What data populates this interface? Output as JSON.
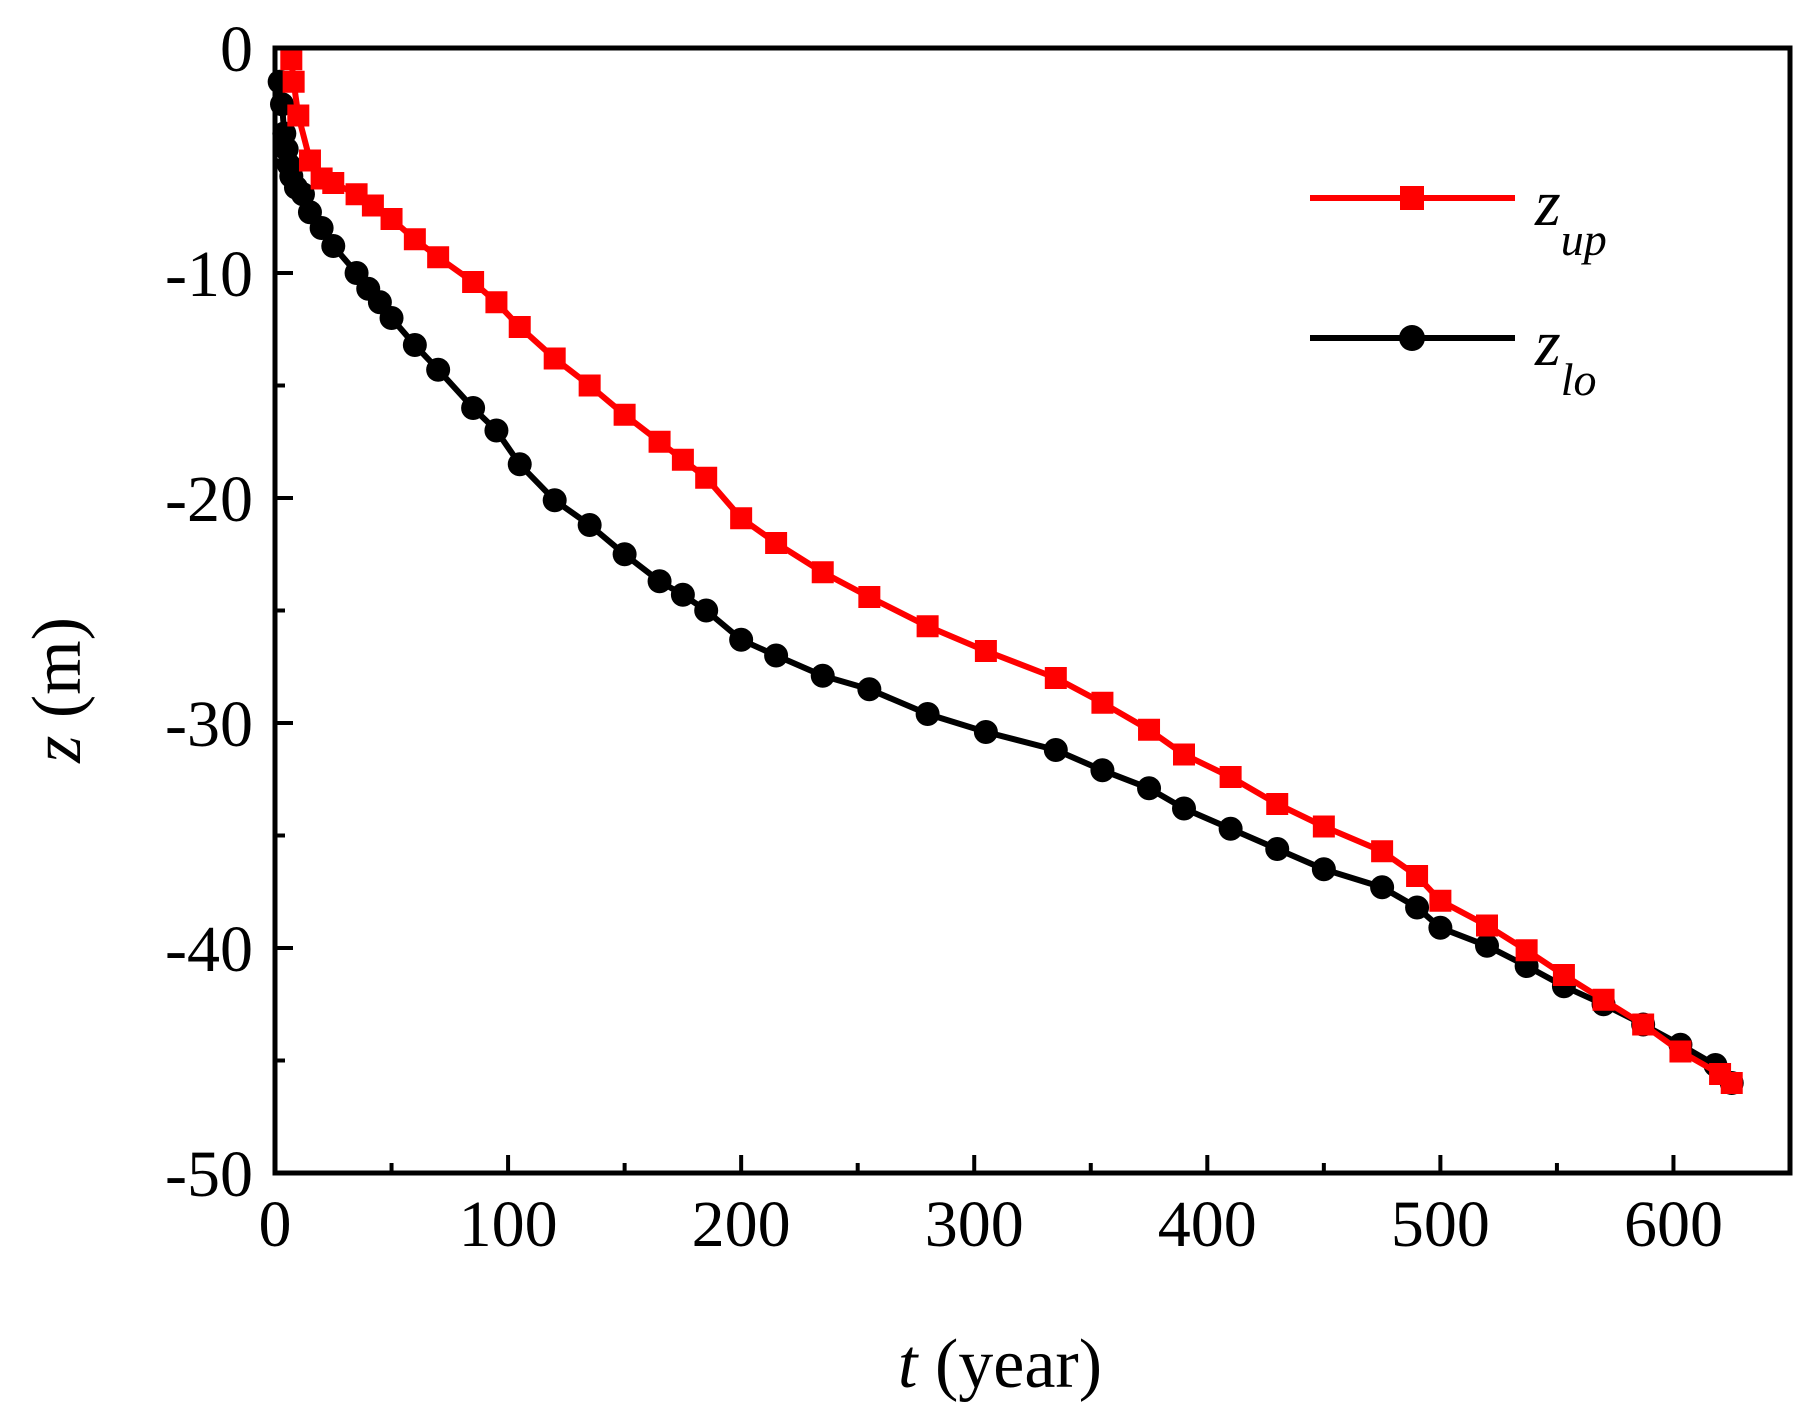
{
  "chart_data": {
    "type": "line",
    "title": "",
    "xlabel": {
      "var": "t",
      "unit": " (year)"
    },
    "ylabel": {
      "var": "z",
      "unit": " (m)"
    },
    "xlim": [
      0,
      650
    ],
    "ylim": [
      -50,
      0
    ],
    "xticks": [
      0,
      100,
      200,
      300,
      400,
      500,
      600
    ],
    "xtick_labels": [
      "0",
      "100",
      "200",
      "300",
      "400",
      "500",
      "600"
    ],
    "xminor": [
      50,
      150,
      250,
      350,
      450,
      550
    ],
    "yticks": [
      0,
      -10,
      -20,
      -30,
      -40,
      -50
    ],
    "ytick_labels": [
      "0",
      "-10",
      "-20",
      "-30",
      "-40",
      "-50"
    ],
    "yminor": [
      -5,
      -15,
      -25,
      -35,
      -45
    ],
    "grid": false,
    "legend_position": "top-right",
    "series": [
      {
        "name": "z_up",
        "legend_main": "z",
        "legend_sub": "up",
        "color": "#ff0000",
        "marker": "square",
        "x": [
          7,
          8,
          10,
          15,
          20,
          25,
          35,
          42,
          50,
          60,
          70,
          85,
          95,
          105,
          120,
          135,
          150,
          165,
          175,
          185,
          200,
          215,
          235,
          255,
          280,
          305,
          335,
          355,
          375,
          390,
          410,
          430,
          450,
          475,
          490,
          500,
          520,
          537,
          553,
          570,
          587,
          603,
          620,
          625
        ],
        "y": [
          -0.5,
          -1.5,
          -3.0,
          -5.0,
          -5.8,
          -6.0,
          -6.5,
          -7.0,
          -7.6,
          -8.5,
          -9.3,
          -10.4,
          -11.3,
          -12.4,
          -13.8,
          -15.0,
          -16.3,
          -17.5,
          -18.3,
          -19.1,
          -20.9,
          -22.0,
          -23.3,
          -24.4,
          -25.7,
          -26.8,
          -28.0,
          -29.1,
          -30.3,
          -31.4,
          -32.4,
          -33.6,
          -34.6,
          -35.7,
          -36.8,
          -37.9,
          -39.0,
          -40.1,
          -41.2,
          -42.3,
          -43.4,
          -44.6,
          -45.6,
          -46.0
        ]
      },
      {
        "name": "z_lo",
        "legend_main": "z",
        "legend_sub": "lo",
        "color": "#000000",
        "marker": "circle",
        "x": [
          2,
          3,
          4,
          5,
          6,
          7,
          9,
          12,
          15,
          20,
          25,
          35,
          40,
          45,
          50,
          60,
          70,
          85,
          95,
          105,
          120,
          135,
          150,
          165,
          175,
          185,
          200,
          215,
          235,
          255,
          280,
          305,
          335,
          355,
          375,
          390,
          410,
          430,
          450,
          475,
          490,
          500,
          520,
          537,
          553,
          570,
          587,
          603,
          618,
          625
        ],
        "y": [
          -1.5,
          -2.5,
          -3.8,
          -4.5,
          -5.2,
          -5.7,
          -6.2,
          -6.5,
          -7.3,
          -8.0,
          -8.8,
          -10.0,
          -10.7,
          -11.3,
          -12.0,
          -13.2,
          -14.3,
          -16.0,
          -17.0,
          -18.5,
          -20.1,
          -21.2,
          -22.5,
          -23.7,
          -24.3,
          -25.0,
          -26.3,
          -27.0,
          -27.9,
          -28.5,
          -29.6,
          -30.4,
          -31.2,
          -32.1,
          -32.9,
          -33.8,
          -34.7,
          -35.6,
          -36.5,
          -37.3,
          -38.2,
          -39.1,
          -39.9,
          -40.8,
          -41.7,
          -42.5,
          -43.4,
          -44.3,
          -45.2,
          -46.0
        ]
      }
    ]
  }
}
